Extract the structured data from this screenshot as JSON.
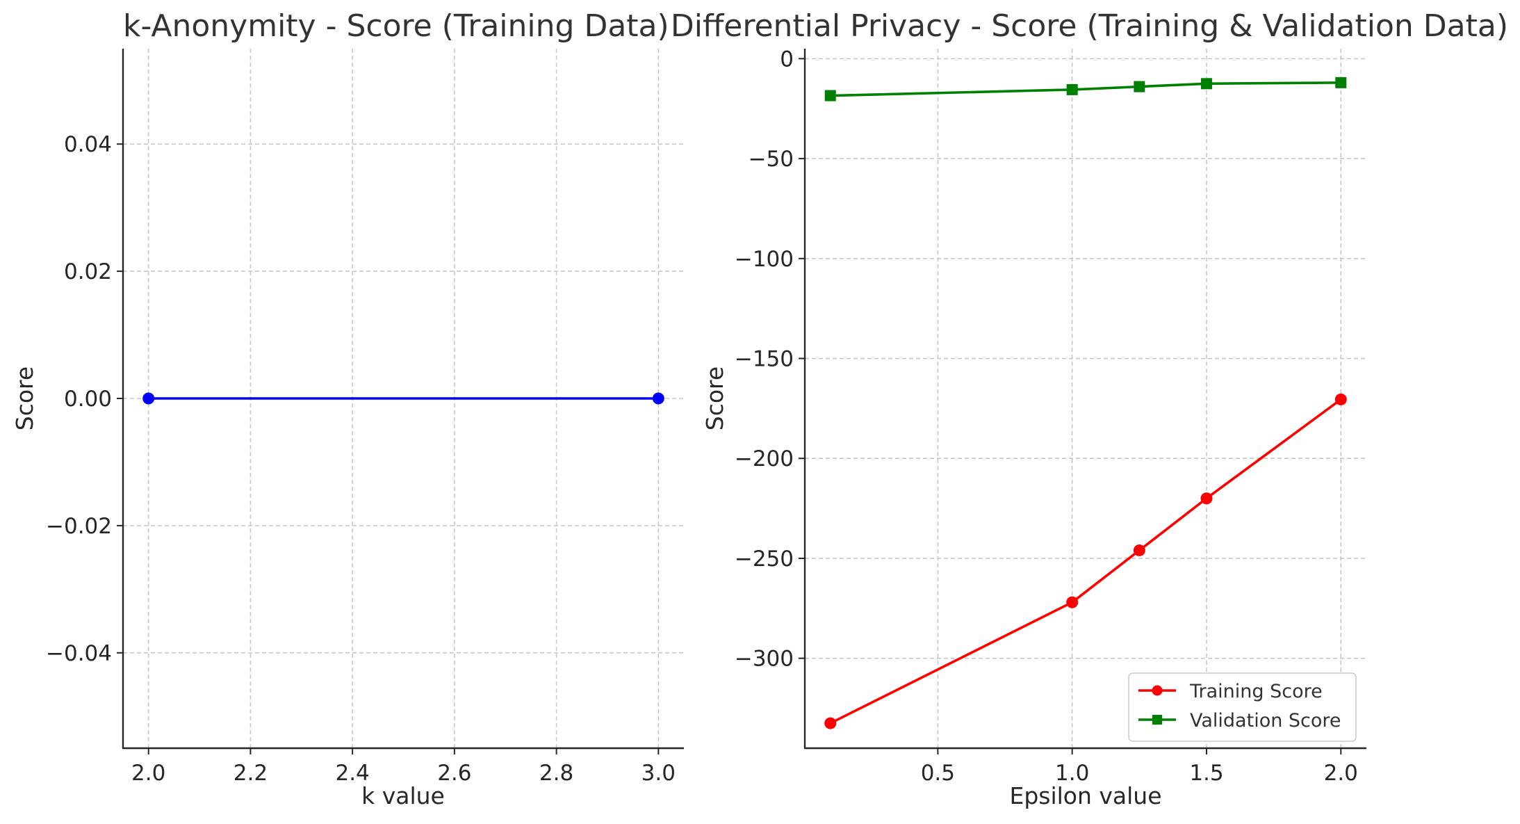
{
  "chart_data": [
    {
      "type": "line",
      "title": "k-Anonymity - Score (Training Data)",
      "xlabel": "k value",
      "ylabel": "Score",
      "xlim": [
        1.95,
        3.05
      ],
      "ylim": [
        -0.055,
        0.055
      ],
      "xticks": [
        "2.0",
        "2.2",
        "2.4",
        "2.6",
        "2.8",
        "3.0"
      ],
      "yticks": [
        "−0.04",
        "−0.02",
        "0.00",
        "0.02",
        "0.04"
      ],
      "grid": true,
      "series": [
        {
          "x": [
            2.0,
            3.0
          ],
          "values": [
            0.0,
            0.0
          ],
          "color": "#0000ff",
          "marker": "circle"
        }
      ]
    },
    {
      "type": "line",
      "title": "Differential Privacy - Score (Training & Validation Data)",
      "xlabel": "Epsilon value",
      "ylabel": "Score",
      "xlim": [
        0.005,
        2.095
      ],
      "ylim": [
        -345,
        5
      ],
      "xticks": [
        "0.5",
        "1.0",
        "1.5",
        "2.0"
      ],
      "yticks": [
        "0",
        "−50",
        "−100",
        "−150",
        "−200",
        "−250",
        "−300"
      ],
      "grid": true,
      "legend_position": "lower-right",
      "series": [
        {
          "name": "Training Score",
          "x": [
            0.1,
            1.0,
            1.25,
            1.5,
            2.0
          ],
          "values": [
            -332.5,
            -272,
            -246,
            -220,
            -170.5
          ],
          "color": "#ff0000",
          "marker": "circle"
        },
        {
          "name": "Validation Score",
          "x": [
            0.1,
            1.0,
            1.25,
            1.5,
            2.0
          ],
          "values": [
            -18.5,
            -15.5,
            -14,
            -12.5,
            -12
          ],
          "color": "#008000",
          "marker": "square"
        }
      ]
    }
  ]
}
